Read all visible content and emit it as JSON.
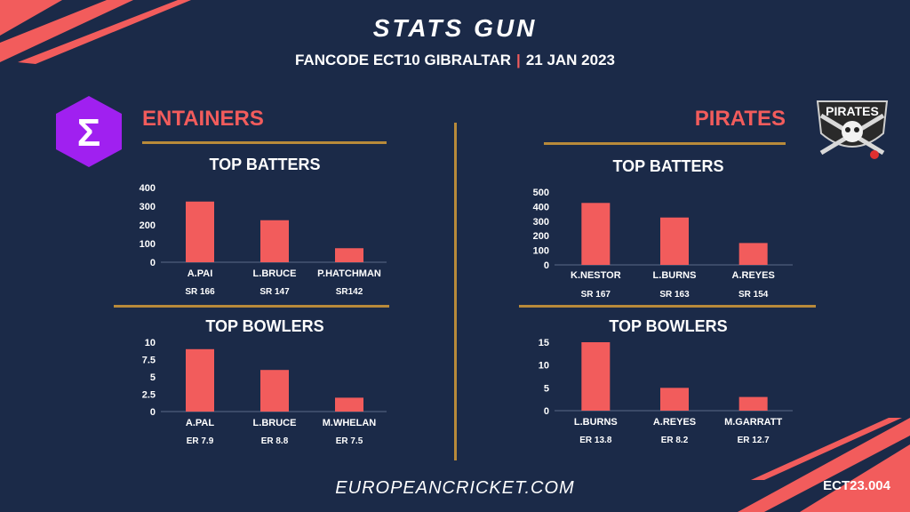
{
  "header": {
    "title": "STATS GUN",
    "event": "FANCODE ECT10 GIBRALTAR",
    "date": "21 JAN 2023"
  },
  "teams": {
    "left": "ENTAINERS",
    "right": "PIRATES"
  },
  "logos": {
    "left_symbol": "Σ",
    "right_text": "PIRATES"
  },
  "footer": {
    "site": "EUROPEANCRICKET.COM",
    "code": "ECT23.004"
  },
  "colors": {
    "bar": "#f25c5c",
    "accent": "#b88a3a",
    "background": "#1b2a48",
    "left_logo": "#a020f0"
  },
  "chart_data": [
    {
      "type": "bar",
      "team": "ENTAINERS",
      "title": "TOP BATTERS",
      "categories": [
        "A.PAI",
        "L.BRUCE",
        "P.HATCHMAN"
      ],
      "values": [
        325,
        225,
        75
      ],
      "sublabels": [
        "SR 166",
        "SR 147",
        "SR142"
      ],
      "yticks": [
        "0",
        "100",
        "200",
        "300",
        "400"
      ],
      "ylim": [
        0,
        400
      ]
    },
    {
      "type": "bar",
      "team": "ENTAINERS",
      "title": "TOP BOWLERS",
      "categories": [
        "A.PAL",
        "L.BRUCE",
        "M.WHELAN"
      ],
      "values": [
        9,
        6,
        2
      ],
      "sublabels": [
        "ER 7.9",
        "ER 8.8",
        "ER 7.5"
      ],
      "yticks": [
        "0",
        "2.5",
        "5",
        "7.5",
        "10"
      ],
      "ylim": [
        0,
        10
      ]
    },
    {
      "type": "bar",
      "team": "PIRATES",
      "title": "TOP BATTERS",
      "categories": [
        "K.NESTOR",
        "L.BURNS",
        "A.REYES"
      ],
      "values": [
        425,
        325,
        150
      ],
      "sublabels": [
        "SR 167",
        "SR 163",
        "SR 154"
      ],
      "yticks": [
        "0",
        "100",
        "200",
        "300",
        "400",
        "500"
      ],
      "ylim": [
        0,
        500
      ]
    },
    {
      "type": "bar",
      "team": "PIRATES",
      "title": "TOP BOWLERS",
      "categories": [
        "L.BURNS",
        "A.REYES",
        "M.GARRATT"
      ],
      "values": [
        15,
        5,
        3
      ],
      "sublabels": [
        "ER 13.8",
        "ER 8.2",
        "ER 12.7"
      ],
      "yticks": [
        "0",
        "5",
        "10",
        "15"
      ],
      "ylim": [
        0,
        15
      ]
    }
  ]
}
